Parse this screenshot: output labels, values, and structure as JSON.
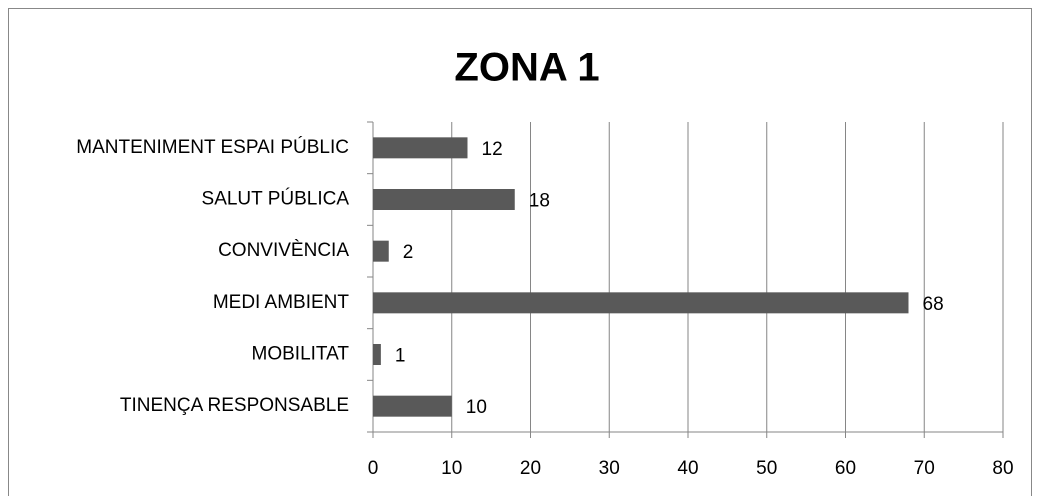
{
  "chart_data": {
    "type": "bar",
    "orientation": "horizontal",
    "title": "ZONA 1",
    "categories": [
      "MANTENIMENT ESPAI PÚBLIC",
      "SALUT PÚBLICA",
      "CONVIVÈNCIA",
      "MEDI AMBIENT",
      "MOBILITAT",
      "TINENÇA RESPONSABLE"
    ],
    "values": [
      12,
      18,
      2,
      68,
      1,
      10
    ],
    "color": "#595959",
    "xlim": [
      0,
      80
    ],
    "xticks": [
      0,
      10,
      20,
      30,
      40,
      50,
      60,
      70,
      80
    ],
    "grid": true
  }
}
